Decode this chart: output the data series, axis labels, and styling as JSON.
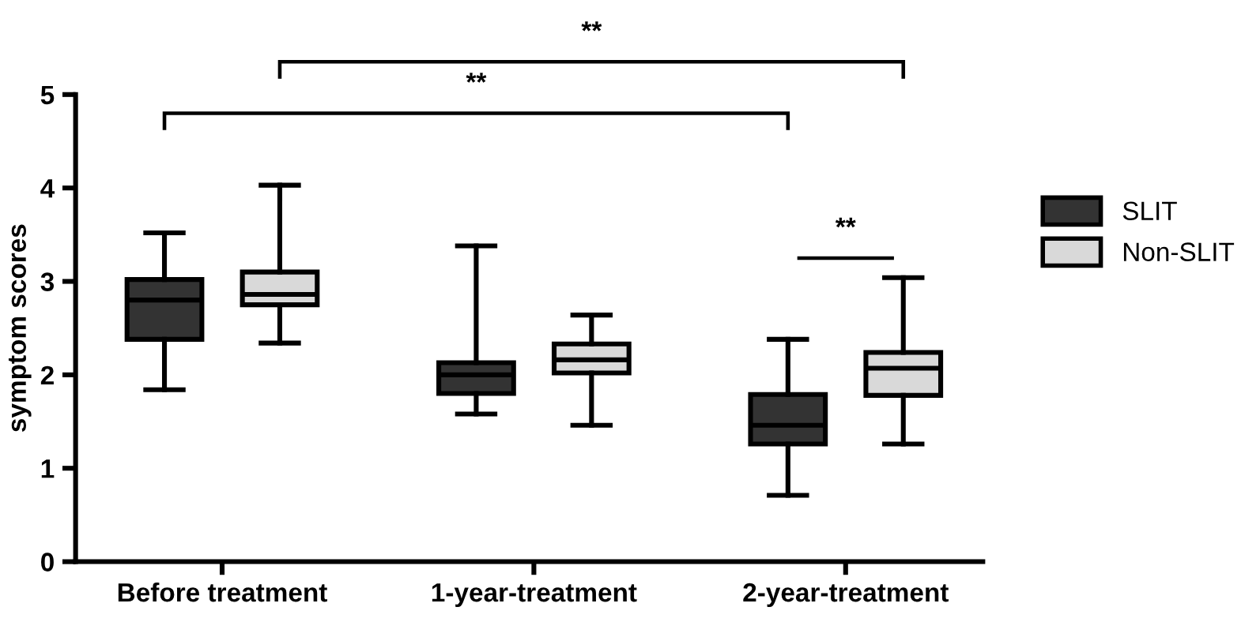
{
  "chart_data": {
    "type": "box",
    "ylabel": "symptom scores",
    "categories": [
      "Before treatment",
      "1-year-treatment",
      "2-year-treatment"
    ],
    "ylim": [
      0,
      5
    ],
    "yticks": [
      0,
      1,
      2,
      3,
      4,
      5
    ],
    "grid": false,
    "legend": "right",
    "series": [
      {
        "name": "SLIT",
        "color": "#333333",
        "boxes": [
          {
            "low": 1.84,
            "q1": 2.38,
            "median": 2.8,
            "q3": 3.02,
            "high": 3.52
          },
          {
            "low": 1.58,
            "q1": 1.8,
            "median": 2.0,
            "q3": 2.13,
            "high": 3.38
          },
          {
            "low": 0.71,
            "q1": 1.26,
            "median": 1.46,
            "q3": 1.79,
            "high": 2.38
          }
        ]
      },
      {
        "name": "Non-SLIT",
        "color": "#d9d9d9",
        "boxes": [
          {
            "low": 2.34,
            "q1": 2.75,
            "median": 2.86,
            "q3": 3.1,
            "high": 4.03
          },
          {
            "low": 1.46,
            "q1": 2.02,
            "median": 2.16,
            "q3": 2.33,
            "high": 2.64
          },
          {
            "low": 1.26,
            "q1": 1.78,
            "median": 2.07,
            "q3": 2.24,
            "high": 3.04
          }
        ]
      }
    ],
    "annotations": [
      "**",
      "**",
      "**"
    ]
  }
}
